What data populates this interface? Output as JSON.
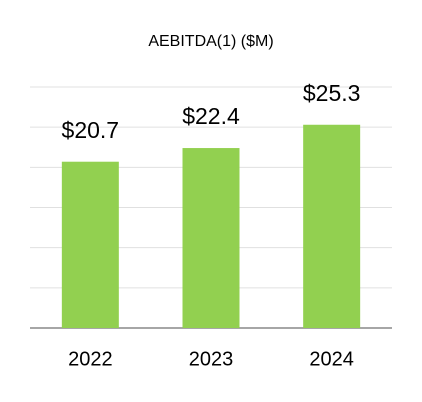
{
  "chart_data": {
    "type": "bar",
    "title": "AEBITDA(1) ($M)",
    "categories": [
      "2022",
      "2023",
      "2024"
    ],
    "values": [
      20.7,
      22.4,
      25.3
    ],
    "value_labels": [
      "$20.7",
      "$22.4",
      "$25.3"
    ],
    "color": "#92d050",
    "ylim": [
      0,
      30
    ],
    "yticks": [
      0,
      5,
      10,
      15,
      20,
      25,
      30
    ],
    "grid": true
  }
}
